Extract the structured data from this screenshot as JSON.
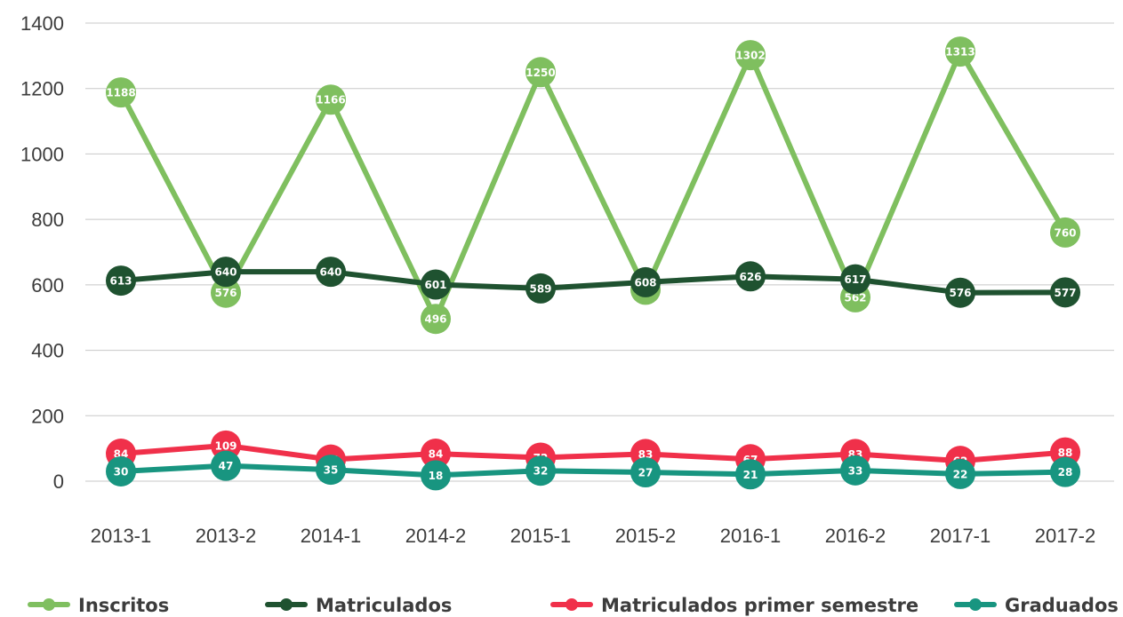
{
  "chart_data": {
    "type": "line",
    "categories": [
      "2013-1",
      "2013-2",
      "2014-1",
      "2014-2",
      "2015-1",
      "2015-2",
      "2016-1",
      "2016-2",
      "2017-1",
      "2017-2"
    ],
    "ylim": [
      0,
      1400
    ],
    "yticks": [
      0,
      200,
      400,
      600,
      800,
      1000,
      1200,
      1400
    ],
    "grid": true,
    "legend_position": "bottom",
    "series": [
      {
        "name": "Inscritos",
        "color": "#7fbf5f",
        "values": [
          1188,
          576,
          1166,
          496,
          1250,
          585,
          1302,
          562,
          1313,
          760
        ]
      },
      {
        "name": "Matriculados",
        "color": "#1f5230",
        "values": [
          613,
          640,
          640,
          601,
          589,
          608,
          626,
          617,
          576,
          577
        ]
      },
      {
        "name": "Matriculados primer semestre",
        "color": "#f0304a",
        "values": [
          84,
          109,
          66,
          84,
          72,
          83,
          67,
          83,
          62,
          88
        ]
      },
      {
        "name": "Graduados",
        "color": "#189580",
        "values": [
          30,
          47,
          35,
          18,
          32,
          27,
          21,
          33,
          22,
          28
        ]
      }
    ]
  }
}
